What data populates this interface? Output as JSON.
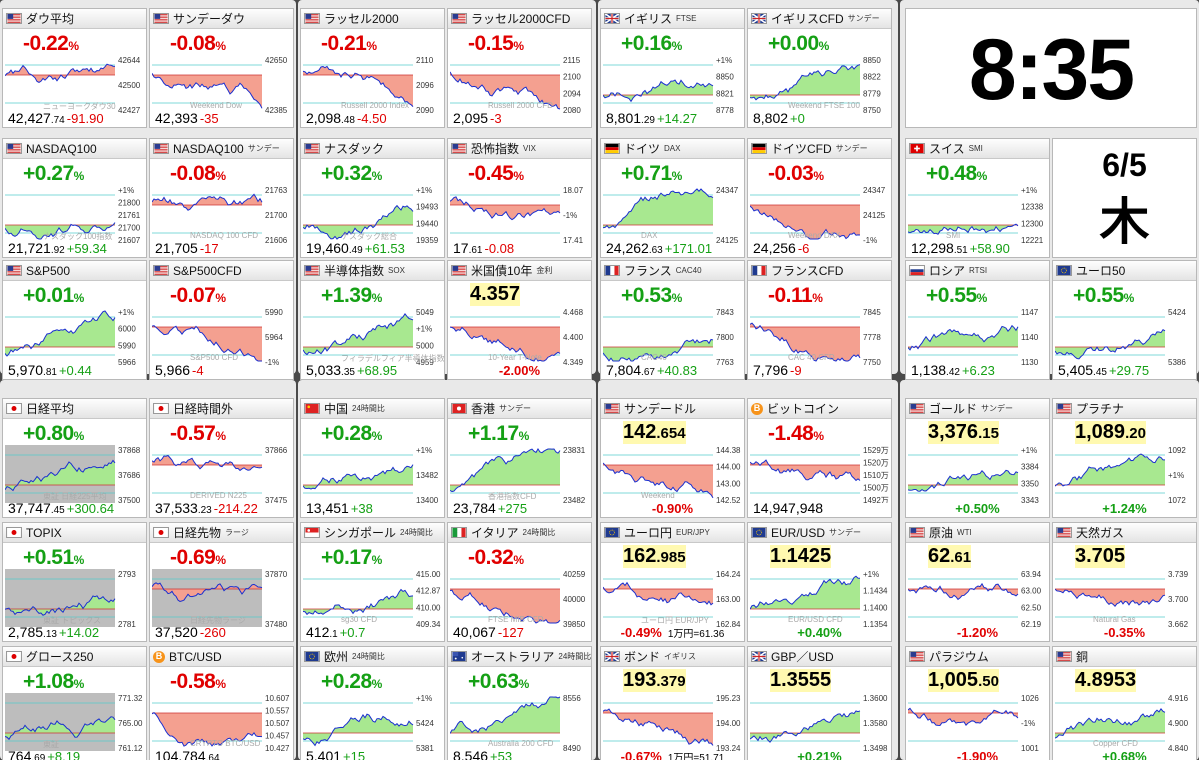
{
  "clock": {
    "time": "8:35",
    "date": "6/5",
    "weekday": "木"
  },
  "colors": {
    "up": "#15a015",
    "down": "#e00000",
    "fill_up": "#a8e890",
    "fill_down": "#f4a090",
    "line": "#1a2fd0",
    "panel": "#e9e9e9"
  },
  "tiles": [
    {
      "name": "ダウ平均",
      "flag": "us",
      "change": "-0.22",
      "value_int": "42,427",
      "value_dec": ".74",
      "diff": "-91.90",
      "dir": "dn",
      "axis": [
        "42644",
        "42500",
        "42427"
      ],
      "label": "ニューヨークダウ30"
    },
    {
      "name": "サンデーダウ",
      "flag": "us",
      "change": "-0.08",
      "value_int": "42,393",
      "value_dec": "",
      "diff": "-35",
      "dir": "dn",
      "axis": [
        "42650",
        "42385"
      ],
      "label": "Weekend Dow"
    },
    {
      "name": "ラッセル2000",
      "flag": "us",
      "change": "-0.21",
      "value_int": "2,098",
      "value_dec": ".48",
      "diff": "-4.50",
      "dir": "dn",
      "axis": [
        "2110",
        "2096",
        "2090"
      ],
      "label": "Russell 2000 Index"
    },
    {
      "name": "ラッセル2000CFD",
      "flag": "us",
      "change": "-0.15",
      "value_int": "2,095",
      "value_dec": "",
      "diff": "-3",
      "dir": "dn",
      "axis": [
        "2115",
        "2100",
        "2094",
        "2080"
      ],
      "label": "Russell 2000 CFD"
    },
    {
      "name": "イギリス",
      "sub": "FTSE",
      "flag": "gb",
      "change": "+0.16",
      "value_int": "8,801",
      "value_dec": ".29",
      "diff": "+14.27",
      "dir": "up",
      "axis": [
        "+1%",
        "8850",
        "8821",
        "8778"
      ],
      "label": ""
    },
    {
      "name": "イギリスCFD",
      "sub": "サンデー",
      "flag": "gb",
      "change": "+0.00",
      "value_int": "8,802",
      "value_dec": "",
      "diff": "+0",
      "dir": "up",
      "axis": [
        "8850",
        "8822",
        "8779",
        "8750"
      ],
      "label": "Weekend FTSE 100"
    },
    {
      "name": "NASDAQ100",
      "flag": "us",
      "change": "+0.27",
      "value_int": "21,721",
      "value_dec": ".92",
      "diff": "+59.34",
      "dir": "up",
      "axis": [
        "+1%",
        "21800",
        "21761",
        "21700",
        "21607"
      ],
      "label": "ナスダック100指数"
    },
    {
      "name": "NASDAQ100",
      "sub": "サンデー",
      "flag": "us",
      "change": "-0.08",
      "value_int": "21,705",
      "value_dec": "",
      "diff": "-17",
      "dir": "dn",
      "axis": [
        "21763",
        "21700",
        "21606"
      ],
      "label": "NASDAQ 100 CFD"
    },
    {
      "name": "ナスダック",
      "flag": "us",
      "change": "+0.32",
      "value_int": "19,460",
      "value_dec": ".49",
      "diff": "+61.53",
      "dir": "up",
      "axis": [
        "+1%",
        "19493",
        "19440",
        "19359"
      ],
      "label": "ナスダック総合"
    },
    {
      "name": "恐怖指数",
      "sub": "VIX",
      "flag": "us",
      "change": "-0.45",
      "value_int": "17",
      "value_dec": ".61",
      "diff": "-0.08",
      "dir": "dn",
      "axis": [
        "18.07",
        "-1%",
        "17.41"
      ],
      "label": ""
    },
    {
      "name": "ドイツ",
      "sub": "DAX",
      "flag": "de",
      "change": "+0.71",
      "value_int": "24,262",
      "value_dec": ".63",
      "diff": "+171.01",
      "dir": "up",
      "axis": [
        "24347",
        "24125"
      ],
      "label": "DAX"
    },
    {
      "name": "ドイツCFD",
      "sub": "サンデー",
      "flag": "de",
      "change": "-0.03",
      "value_int": "24,256",
      "value_dec": "",
      "diff": "-6",
      "dir": "dn",
      "axis": [
        "24347",
        "24125",
        "-1%"
      ],
      "label": "Weekend DAX"
    },
    {
      "name": "スイス",
      "sub": "SMI",
      "flag": "ch",
      "change": "+0.48",
      "value_int": "12,298",
      "value_dec": ".51",
      "diff": "+58.90",
      "dir": "up",
      "axis": [
        "+1%",
        "12338",
        "12300",
        "12221"
      ],
      "label": "SMI"
    },
    {
      "name": "S&P500",
      "flag": "us",
      "change": "+0.01",
      "value_int": "5,970",
      "value_dec": ".81",
      "diff": "+0.44",
      "dir": "up",
      "axis": [
        "+1%",
        "6000",
        "5990",
        "5966"
      ],
      "label": ""
    },
    {
      "name": "S&P500CFD",
      "flag": "us",
      "change": "-0.07",
      "value_int": "5,966",
      "value_dec": "",
      "diff": "-4",
      "dir": "dn",
      "axis": [
        "5990",
        "5964",
        "-1%"
      ],
      "label": "S&P500 CFD"
    },
    {
      "name": "半導体指数",
      "sub": "SOX",
      "flag": "us",
      "change": "+1.39",
      "value_int": "5,033",
      "value_dec": ".35",
      "diff": "+68.95",
      "dir": "up",
      "axis": [
        "5049",
        "+1%",
        "5000",
        "4959"
      ],
      "label": "フィラデルフィア半導体指数"
    },
    {
      "name": "米国債10年",
      "sub": "金利",
      "flag": "us",
      "change": "",
      "value_int": "",
      "value_dec": "",
      "diff": "",
      "dir": "dn",
      "axis": [
        "4.468",
        "4.400",
        "4.349"
      ],
      "label": "10-Year T-Note",
      "big": "4.357",
      "pct": "-2.00%"
    },
    {
      "name": "フランス",
      "sub": "CAC40",
      "flag": "fr",
      "change": "+0.53",
      "value_int": "7,804",
      "value_dec": ".67",
      "diff": "+40.83",
      "dir": "up",
      "axis": [
        "7843",
        "7800",
        "7763"
      ],
      "label": "CAC40"
    },
    {
      "name": "フランスCFD",
      "flag": "fr",
      "change": "-0.11",
      "value_int": "7,796",
      "value_dec": "",
      "diff": "-9",
      "dir": "dn",
      "axis": [
        "7845",
        "7778",
        "7750"
      ],
      "label": "CAC 40 CFD"
    },
    {
      "name": "ロシア",
      "sub": "RTSI",
      "flag": "ru",
      "change": "+0.55",
      "value_int": "1,138",
      "value_dec": ".42",
      "diff": "+6.23",
      "dir": "up",
      "axis": [
        "1147",
        "1140",
        "1130"
      ],
      "label": ""
    },
    {
      "name": "ユーロ50",
      "flag": "eu",
      "change": "+0.55",
      "value_int": "5,405",
      "value_dec": ".45",
      "diff": "+29.75",
      "dir": "up",
      "axis": [
        "5424",
        "5386"
      ],
      "label": ""
    },
    {
      "name": "日経平均",
      "flag": "jp",
      "change": "+0.80",
      "value_int": "37,747",
      "value_dec": ".45",
      "diff": "+300.64",
      "dir": "up",
      "axis": [
        "37868",
        "37686",
        "37500"
      ],
      "label": "東証 日経225平均",
      "shade": true
    },
    {
      "name": "日経時間外",
      "flag": "jp",
      "change": "-0.57",
      "value_int": "37,533",
      "value_dec": ".23",
      "diff": "-214.22",
      "dir": "dn",
      "axis": [
        "37866",
        "37475"
      ],
      "label": "DERIVED N225"
    },
    {
      "name": "中国",
      "sub": "24時間比",
      "flag": "cn",
      "change": "+0.28",
      "value_int": "13,451",
      "value_dec": "",
      "diff": "+38",
      "dir": "up",
      "axis": [
        "+1%",
        "13482",
        "13400"
      ],
      "label": ""
    },
    {
      "name": "香港",
      "sub": "サンデー",
      "flag": "hk",
      "change": "+1.17",
      "value_int": "23,784",
      "value_dec": "",
      "diff": "+275",
      "dir": "up",
      "axis": [
        "23831",
        "23482"
      ],
      "label": "香港指数CFD"
    },
    {
      "name": "サンデードル",
      "flag": "us",
      "change": "",
      "value_int": "",
      "value_dec": "",
      "diff": "",
      "dir": "dn",
      "axis": [
        "144.38",
        "144.00",
        "143.00",
        "142.52"
      ],
      "label": "Weekend",
      "big": "142",
      "bigdec": ".654",
      "pct": "-0.90%"
    },
    {
      "name": "ビットコイン",
      "flag": "btc",
      "change": "-1.48",
      "value_int": "14,947,948",
      "value_dec": "",
      "diff": "",
      "dir": "dn",
      "axis": [
        "1529万",
        "1520万",
        "1510万",
        "1500万",
        "1492万"
      ],
      "label": ""
    },
    {
      "name": "ゴールド",
      "sub": "サンデー",
      "flag": "us",
      "change": "",
      "value_int": "",
      "value_dec": "",
      "diff": "",
      "dir": "up",
      "axis": [
        "+1%",
        "3384",
        "3350",
        "3343"
      ],
      "label": "",
      "big": "3,376",
      "bigdec": ".15",
      "pct": "+0.50%"
    },
    {
      "name": "プラチナ",
      "flag": "us",
      "change": "",
      "value_int": "",
      "value_dec": "",
      "diff": "",
      "dir": "up",
      "axis": [
        "1092",
        "+1%",
        "1072"
      ],
      "label": "",
      "big": "1,089",
      "bigdec": ".20",
      "pct": "+1.24%"
    },
    {
      "name": "TOPIX",
      "flag": "jp",
      "change": "+0.51",
      "value_int": "2,785",
      "value_dec": ".13",
      "diff": "+14.02",
      "dir": "up",
      "axis": [
        "2793",
        "2781"
      ],
      "label": "東証 トピックス",
      "shade": true
    },
    {
      "name": "日経先物",
      "sub": "ラージ",
      "flag": "jp",
      "change": "-0.69",
      "value_int": "37,520",
      "value_dec": "",
      "diff": "-260",
      "dir": "dn",
      "axis": [
        "37870",
        "37480"
      ],
      "label": "日経先物ラージ",
      "shade": true
    },
    {
      "name": "シンガポール",
      "sub": "24時間比",
      "flag": "sg",
      "change": "+0.17",
      "value_int": "412",
      "value_dec": ".1",
      "diff": "+0.7",
      "dir": "up",
      "axis": [
        "415.00",
        "412.87",
        "410.00",
        "409.34"
      ],
      "label": "sg30 CFD"
    },
    {
      "name": "イタリア",
      "sub": "24時間比",
      "flag": "it",
      "change": "-0.32",
      "value_int": "40,067",
      "value_dec": "",
      "diff": "-127",
      "dir": "dn",
      "axis": [
        "40259",
        "40000",
        "39850"
      ],
      "label": "FTSE MIB CFD"
    },
    {
      "name": "ユーロ円",
      "sub": "EUR/JPY",
      "flag": "eu",
      "change": "",
      "value_int": "",
      "value_dec": "",
      "diff": "",
      "dir": "dn",
      "axis": [
        "164.24",
        "163.00",
        "162.84"
      ],
      "label": "ユーロ円 EUR/JPY",
      "big": "162",
      "bigdec": ".985",
      "pct": "-0.49%",
      "note": "1万円=61.36"
    },
    {
      "name": "EUR/USD",
      "sub": "サンデー",
      "flag": "eu",
      "change": "",
      "value_int": "",
      "value_dec": "",
      "diff": "",
      "dir": "up",
      "axis": [
        "+1%",
        "1.1434",
        "1.1400",
        "1.1354"
      ],
      "label": "EUR/USD CFD",
      "big": "1.1425",
      "pct": "+0.40%"
    },
    {
      "name": "原油",
      "sub": "WTI",
      "flag": "us",
      "change": "",
      "value_int": "",
      "value_dec": "",
      "diff": "",
      "dir": "dn",
      "axis": [
        "63.94",
        "63.00",
        "62.50",
        "62.19"
      ],
      "label": "",
      "big": "62",
      "bigdec": ".61",
      "pct": "-1.20%"
    },
    {
      "name": "天然ガス",
      "flag": "us",
      "change": "",
      "value_int": "",
      "value_dec": "",
      "diff": "",
      "dir": "dn",
      "axis": [
        "3.739",
        "3.700",
        "3.662"
      ],
      "label": "Natural Gas",
      "big": "3.705",
      "pct": "-0.35%"
    },
    {
      "name": "グロース250",
      "flag": "jp",
      "change": "+1.08",
      "value_int": "764",
      "value_dec": ".69",
      "diff": "+8.19",
      "dir": "up",
      "axis": [
        "771.32",
        "765.00",
        "761.12"
      ],
      "label": "東証",
      "shade": true
    },
    {
      "name": "BTC/USD",
      "flag": "btc",
      "change": "-0.58",
      "value_int": "104,784",
      "value_dec": ".64",
      "diff": "",
      "dir": "dn",
      "axis": [
        "10.607",
        "10.557",
        "10.507",
        "10.457",
        "10.427"
      ],
      "label": "CRYPTO BTC/USD"
    },
    {
      "name": "欧州",
      "sub": "24時間比",
      "flag": "eu",
      "change": "+0.28",
      "value_int": "5,401",
      "value_dec": "",
      "diff": "+15",
      "dir": "up",
      "axis": [
        "+1%",
        "5424",
        "5381"
      ],
      "label": ""
    },
    {
      "name": "オーストラリア",
      "sub": "24時間比",
      "flag": "au",
      "change": "+0.63",
      "value_int": "8,546",
      "value_dec": "",
      "diff": "+53",
      "dir": "up",
      "axis": [
        "8556",
        "8490"
      ],
      "label": "Australia 200 CFD"
    },
    {
      "name": "ボンド",
      "sub": "イギリス",
      "flag": "gb",
      "change": "",
      "value_int": "",
      "value_dec": "",
      "diff": "",
      "dir": "dn",
      "axis": [
        "195.23",
        "194.00",
        "193.24"
      ],
      "label": "",
      "big": "193",
      "bigdec": ".379",
      "pct": "-0.67%",
      "note": "1万円=51.71"
    },
    {
      "name": "GBP／USD",
      "flag": "gb",
      "change": "",
      "value_int": "",
      "value_dec": "",
      "diff": "",
      "dir": "up",
      "axis": [
        "1.3600",
        "1.3580",
        "1.3498"
      ],
      "label": "",
      "big": "1.3555",
      "pct": "+0.21%"
    },
    {
      "name": "パラジウム",
      "flag": "us",
      "change": "",
      "value_int": "",
      "value_dec": "",
      "diff": "",
      "dir": "dn",
      "axis": [
        "1026",
        "-1%",
        "1001"
      ],
      "label": "",
      "big": "1,005",
      "bigdec": ".50",
      "pct": "-1.90%"
    },
    {
      "name": "銅",
      "flag": "us",
      "change": "",
      "value_int": "",
      "value_dec": "",
      "diff": "",
      "dir": "up",
      "axis": [
        "4.916",
        "4.900",
        "4.840"
      ],
      "label": "Copper CFD",
      "big": "4.8953",
      "pct": "+0.68%"
    }
  ]
}
